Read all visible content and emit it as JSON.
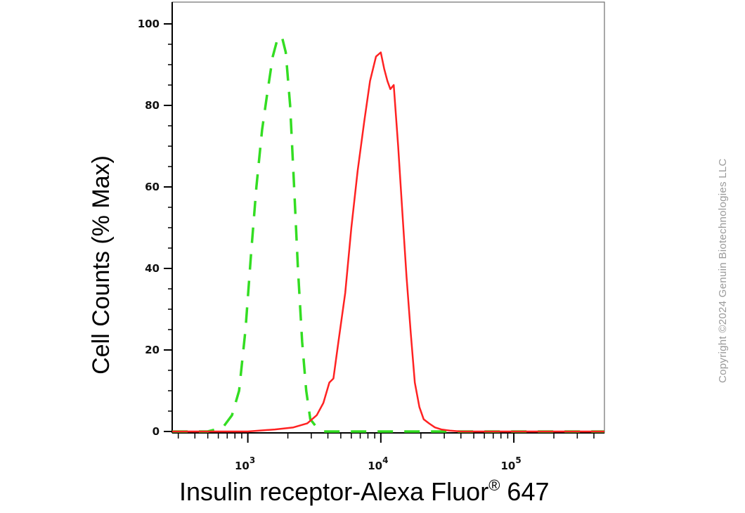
{
  "chart_data": {
    "type": "line",
    "title": "",
    "xlabel": "Insulin receptor-Alexa Fluor",
    "xlabel_mark": "®",
    "xlabel_suffix": " 647",
    "ylabel": "Cell Counts (% Max)",
    "x_scale": "log",
    "xlim": [
      270,
      480000
    ],
    "ylim": [
      0,
      105
    ],
    "x_ticks": [
      {
        "base": "10",
        "exp": "3",
        "value": 1000
      },
      {
        "base": "10",
        "exp": "4",
        "value": 10000
      },
      {
        "base": "10",
        "exp": "5",
        "value": 100000
      }
    ],
    "y_ticks": [
      {
        "value": 0,
        "label": "0"
      },
      {
        "value": 20,
        "label": "20"
      },
      {
        "value": 40,
        "label": "40"
      },
      {
        "value": 60,
        "label": "60"
      },
      {
        "value": 80,
        "label": "80"
      },
      {
        "value": 100,
        "label": "100"
      }
    ],
    "grid": false,
    "series": [
      {
        "color": "#33dd22",
        "style": "dashed",
        "x": [
          270,
          500,
          650,
          760,
          860,
          960,
          1060,
          1160,
          1280,
          1400,
          1540,
          1660,
          1800,
          1930,
          2080,
          2220,
          2380,
          2560,
          2750,
          2950,
          3300,
          3700,
          4200,
          6000,
          10000,
          50000,
          480000
        ],
        "y": [
          0,
          0,
          1,
          4,
          10,
          25,
          44,
          60,
          74,
          83,
          92,
          96,
          97,
          93,
          80,
          61,
          40,
          22,
          10,
          3,
          1,
          0,
          0,
          0,
          0,
          0,
          0
        ]
      },
      {
        "color": "#ff2222",
        "style": "solid",
        "x": [
          270,
          1000,
          1600,
          2200,
          2800,
          3300,
          3700,
          4100,
          4400,
          4800,
          5400,
          6000,
          6700,
          7500,
          8300,
          9200,
          10000,
          10600,
          11200,
          11800,
          12500,
          13500,
          14500,
          15600,
          16800,
          18000,
          19500,
          21000,
          23000,
          25500,
          28500,
          33000,
          40000,
          50000,
          480000
        ],
        "y": [
          0,
          0,
          0.5,
          1,
          2,
          4,
          7,
          12,
          13,
          22,
          34,
          50,
          64,
          76,
          86,
          92,
          93,
          89,
          86,
          84,
          85,
          70,
          54,
          38,
          24,
          12,
          6,
          3,
          2,
          1,
          0.5,
          0.2,
          0,
          0,
          0
        ]
      }
    ]
  },
  "watermark": "Copyright ©2024 Genuin Biotechnologies LLC"
}
